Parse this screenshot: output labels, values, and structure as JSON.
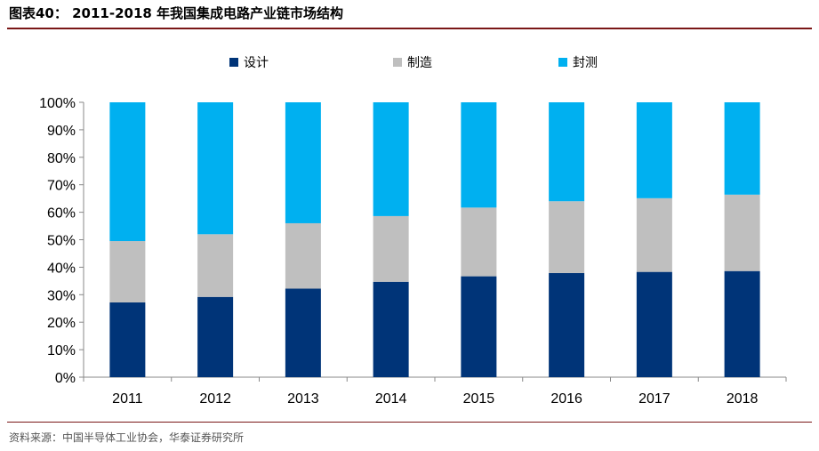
{
  "header": {
    "title": "图表40： 2011-2018 年我国集成电路产业链市场结构"
  },
  "footer": {
    "source": "资料来源：中国半导体工业协会，华泰证券研究所"
  },
  "colors": {
    "design": "#003478",
    "manufacturing": "#bfbfbf",
    "packaging": "#00b0f0",
    "rule": "#7a1717"
  },
  "chart_data": {
    "type": "bar",
    "stacked": true,
    "categories": [
      "2011",
      "2012",
      "2013",
      "2014",
      "2015",
      "2016",
      "2017",
      "2018"
    ],
    "series": [
      {
        "name": "设计",
        "values": [
          27.2,
          29.2,
          32.2,
          34.7,
          36.7,
          37.9,
          38.3,
          38.6
        ]
      },
      {
        "name": "制造",
        "values": [
          22.3,
          22.8,
          23.8,
          23.9,
          25.0,
          26.1,
          26.8,
          27.8
        ]
      },
      {
        "name": "封测",
        "values": [
          50.5,
          48.0,
          44.0,
          41.4,
          38.3,
          36.0,
          34.9,
          33.6
        ]
      }
    ],
    "y_ticks": [
      "0%",
      "10%",
      "20%",
      "30%",
      "40%",
      "50%",
      "60%",
      "70%",
      "80%",
      "90%",
      "100%"
    ],
    "ylim": [
      0,
      100
    ],
    "legend_position": "top"
  }
}
